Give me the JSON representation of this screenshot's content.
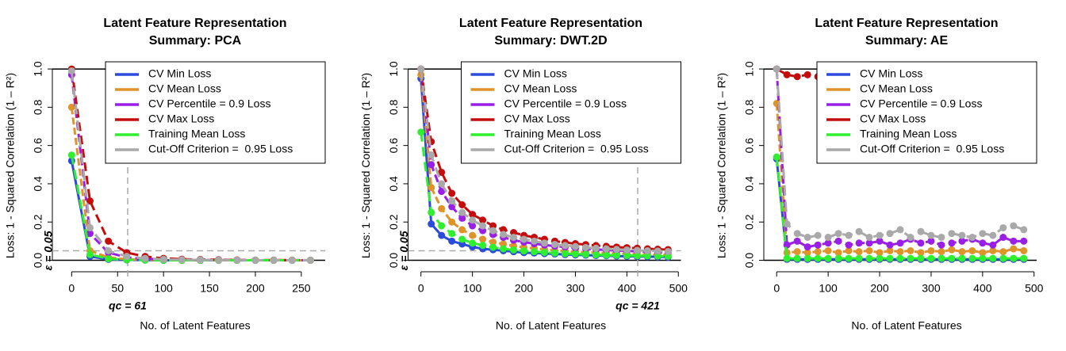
{
  "chart_data": [
    {
      "type": "line",
      "title": "Latent Feature Representation",
      "subtitle": "Summary: PCA",
      "xlabel": "No. of Latent Features",
      "ylabel": "Loss: 1 - Squared Correlation (1 – R²)",
      "xlim": [
        -21,
        276
      ],
      "ylim": [
        -0.06,
        1.05
      ],
      "xticks": [
        0,
        50,
        100,
        150,
        200,
        250
      ],
      "yticks": [
        {
          "value": 0,
          "label": "0.0"
        },
        0.2,
        0.4,
        0.6,
        0.8,
        {
          "value": 1,
          "label": "1.0"
        }
      ],
      "legend": "top-right",
      "epsilon": {
        "value": 0.05,
        "label": "ε = 0.05"
      },
      "qc": {
        "value": 61,
        "label": "qc = 61"
      },
      "x": [
        0,
        20,
        40,
        60,
        80,
        100,
        120,
        140,
        160,
        180,
        200,
        220,
        240,
        260
      ],
      "series": [
        {
          "name": "CV Min Loss",
          "color": "#2a4bdc",
          "values": [
            0.52,
            0.02,
            0.005,
            0.002,
            0.001,
            0,
            0,
            0,
            0,
            0,
            0,
            0,
            0,
            0
          ]
        },
        {
          "name": "CV Mean Loss",
          "color": "#de9429",
          "values": [
            0.8,
            0.05,
            0.015,
            0.005,
            0.003,
            0.002,
            0.001,
            0.001,
            0,
            0,
            0,
            0,
            0,
            0
          ]
        },
        {
          "name": "CV Percentile = 0.9 Loss",
          "color": "#9a1fe6",
          "values": [
            0.97,
            0.14,
            0.04,
            0.015,
            0.008,
            0.005,
            0.003,
            0.002,
            0.001,
            0.001,
            0,
            0,
            0,
            0
          ]
        },
        {
          "name": "CV Max Loss",
          "color": "#c40c0c",
          "values": [
            1.0,
            0.31,
            0.1,
            0.04,
            0.02,
            0.01,
            0.006,
            0.004,
            0.003,
            0.002,
            0.001,
            0.001,
            0.001,
            0
          ]
        },
        {
          "name": "Training Mean Loss",
          "color": "#2ef02e",
          "values": [
            0.55,
            0.03,
            0.008,
            0.003,
            0.001,
            0,
            0,
            0,
            0,
            0,
            0,
            0,
            0,
            0
          ]
        },
        {
          "name": "Cut-Off Criterion =  0.95 Loss",
          "color": "#a9a9a9",
          "values": [
            0.99,
            0.17,
            0.05,
            0.02,
            0.01,
            0.005,
            0.003,
            0.002,
            0.001,
            0.001,
            0,
            0,
            0,
            0
          ]
        }
      ]
    },
    {
      "type": "line",
      "title": "Latent Feature Representation",
      "subtitle": "Summary: DWT.2D",
      "xlabel": "No. of Latent Features",
      "ylabel": "Loss: 1 - Squared Correlation (1 – R²)",
      "xlim": [
        -25,
        505
      ],
      "ylim": [
        -0.06,
        1.05
      ],
      "xticks": [
        0,
        100,
        200,
        300,
        400,
        500
      ],
      "yticks": [
        {
          "value": 0,
          "label": "0.0"
        },
        0.2,
        0.4,
        0.6,
        0.8,
        {
          "value": 1,
          "label": "1.0"
        }
      ],
      "legend": "top-right",
      "epsilon": {
        "value": 0.05,
        "label": "ε = 0.05"
      },
      "qc": {
        "value": 421,
        "label": "qc = 421"
      },
      "x": [
        0,
        20,
        40,
        60,
        80,
        100,
        120,
        140,
        160,
        180,
        200,
        220,
        240,
        260,
        280,
        300,
        320,
        340,
        360,
        380,
        400,
        420,
        440,
        460,
        480
      ],
      "series": [
        {
          "name": "CV Min Loss",
          "color": "#2a4bdc",
          "values": [
            0.95,
            0.19,
            0.13,
            0.1,
            0.085,
            0.07,
            0.06,
            0.055,
            0.05,
            0.045,
            0.04,
            0.038,
            0.035,
            0.033,
            0.03,
            0.028,
            0.027,
            0.025,
            0.024,
            0.022,
            0.021,
            0.02,
            0.019,
            0.018,
            0.017
          ]
        },
        {
          "name": "CV Mean Loss",
          "color": "#de9429",
          "values": [
            0.97,
            0.38,
            0.27,
            0.2,
            0.16,
            0.13,
            0.11,
            0.095,
            0.085,
            0.075,
            0.068,
            0.062,
            0.057,
            0.052,
            0.048,
            0.045,
            0.042,
            0.04,
            0.038,
            0.036,
            0.034,
            0.032,
            0.031,
            0.03,
            0.029
          ]
        },
        {
          "name": "CV Percentile = 0.9 Loss",
          "color": "#9a1fe6",
          "values": [
            1.0,
            0.5,
            0.36,
            0.28,
            0.22,
            0.18,
            0.155,
            0.135,
            0.12,
            0.105,
            0.095,
            0.087,
            0.08,
            0.074,
            0.069,
            0.064,
            0.06,
            0.057,
            0.054,
            0.051,
            0.049,
            0.047,
            0.045,
            0.043,
            0.041
          ]
        },
        {
          "name": "CV Max Loss",
          "color": "#c40c0c",
          "values": [
            1.0,
            0.62,
            0.46,
            0.35,
            0.29,
            0.24,
            0.21,
            0.18,
            0.16,
            0.145,
            0.13,
            0.12,
            0.11,
            0.1,
            0.093,
            0.087,
            0.082,
            0.077,
            0.073,
            0.069,
            0.066,
            0.063,
            0.06,
            0.058,
            0.056
          ]
        },
        {
          "name": "Training Mean Loss",
          "color": "#2ef02e",
          "values": [
            0.67,
            0.25,
            0.18,
            0.14,
            0.11,
            0.09,
            0.078,
            0.068,
            0.06,
            0.054,
            0.049,
            0.045,
            0.041,
            0.038,
            0.035,
            0.033,
            0.031,
            0.029,
            0.027,
            0.026,
            0.025,
            0.024,
            0.023,
            0.022,
            0.021
          ]
        },
        {
          "name": "Cut-Off Criterion =  0.95 Loss",
          "color": "#a9a9a9",
          "values": [
            1.0,
            0.55,
            0.4,
            0.31,
            0.25,
            0.21,
            0.18,
            0.155,
            0.135,
            0.12,
            0.11,
            0.1,
            0.09,
            0.083,
            0.077,
            0.072,
            0.067,
            0.063,
            0.06,
            0.057,
            0.054,
            0.052,
            0.05,
            0.048,
            0.046
          ]
        }
      ]
    },
    {
      "type": "line",
      "title": "Latent Feature Representation",
      "subtitle": "Summary: AE",
      "xlabel": "No. of Latent Features",
      "ylabel": "Loss: 1 - Squared Correlation (1 – R²)",
      "xlim": [
        -25,
        505
      ],
      "ylim": [
        -0.06,
        1.05
      ],
      "xticks": [
        0,
        100,
        200,
        300,
        400,
        500
      ],
      "yticks": [
        {
          "value": 0,
          "label": "0.0"
        },
        0.2,
        0.4,
        0.6,
        0.8,
        {
          "value": 1,
          "label": "1.0"
        }
      ],
      "legend": "top-right",
      "x": [
        0,
        20,
        40,
        60,
        80,
        100,
        120,
        140,
        160,
        180,
        200,
        220,
        240,
        260,
        280,
        300,
        320,
        340,
        360,
        380,
        400,
        420,
        440,
        460,
        480
      ],
      "series": [
        {
          "name": "CV Min Loss",
          "color": "#2a4bdc",
          "values": [
            0.53,
            0.005,
            0.005,
            0.005,
            0.005,
            0.005,
            0.005,
            0.005,
            0.005,
            0.005,
            0.005,
            0.005,
            0.005,
            0.005,
            0.005,
            0.005,
            0.005,
            0.005,
            0.005,
            0.005,
            0.005,
            0.005,
            0.005,
            0.005,
            0.005
          ]
        },
        {
          "name": "CV Mean Loss",
          "color": "#de9429",
          "values": [
            0.82,
            0.04,
            0.045,
            0.04,
            0.045,
            0.05,
            0.04,
            0.05,
            0.045,
            0.05,
            0.04,
            0.05,
            0.045,
            0.05,
            0.04,
            0.05,
            0.045,
            0.055,
            0.045,
            0.05,
            0.04,
            0.05,
            0.045,
            0.06,
            0.05
          ]
        },
        {
          "name": "CV Percentile = 0.9 Loss",
          "color": "#9a1fe6",
          "values": [
            1.0,
            0.08,
            0.1,
            0.07,
            0.08,
            0.09,
            0.1,
            0.08,
            0.09,
            0.09,
            0.1,
            0.08,
            0.09,
            0.11,
            0.09,
            0.1,
            0.08,
            0.09,
            0.1,
            0.11,
            0.09,
            0.08,
            0.12,
            0.1,
            0.1
          ]
        },
        {
          "name": "CV Max Loss",
          "color": "#c40c0c",
          "values": [
            1.0,
            0.97,
            0.96,
            0.97,
            0.96,
            0.97,
            0.97,
            0.96,
            0.97,
            0.97,
            0.96,
            0.97,
            0.97,
            0.96,
            0.97,
            0.97,
            0.96,
            0.97,
            0.97,
            0.96,
            0.97,
            0.97,
            0.96,
            0.97,
            0.97
          ]
        },
        {
          "name": "Training Mean Loss",
          "color": "#2ef02e",
          "values": [
            0.54,
            0.01,
            0.01,
            0.01,
            0.01,
            0.01,
            0.01,
            0.01,
            0.01,
            0.01,
            0.01,
            0.01,
            0.01,
            0.01,
            0.01,
            0.01,
            0.01,
            0.01,
            0.01,
            0.01,
            0.01,
            0.01,
            0.01,
            0.01,
            0.01
          ]
        },
        {
          "name": "Cut-Off Criterion =  0.95 Loss",
          "color": "#a9a9a9",
          "values": [
            1.0,
            0.19,
            0.14,
            0.12,
            0.13,
            0.12,
            0.14,
            0.13,
            0.15,
            0.12,
            0.13,
            0.14,
            0.16,
            0.12,
            0.15,
            0.13,
            0.12,
            0.14,
            0.13,
            0.12,
            0.14,
            0.13,
            0.17,
            0.18,
            0.16
          ]
        }
      ]
    }
  ]
}
